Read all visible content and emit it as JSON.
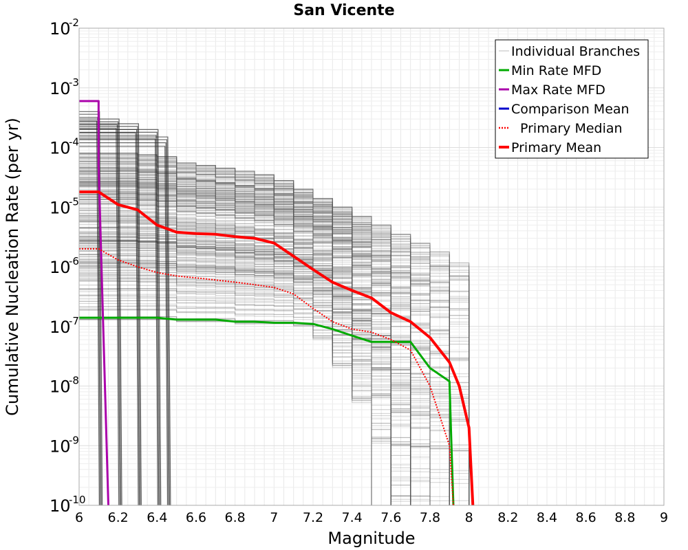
{
  "chart_data": {
    "type": "line",
    "title": "San Vicente",
    "xlabel": "Magnitude",
    "ylabel": "Cumulative Nucleation Rate (per yr)",
    "xlim": [
      6,
      9
    ],
    "ylim": [
      1e-10,
      0.01
    ],
    "yscale": "log",
    "grid": true,
    "legend_position": "top-right",
    "x_ticks": [
      "6",
      "6.2",
      "6.4",
      "6.6",
      "6.8",
      "7",
      "7.2",
      "7.4",
      "7.6",
      "7.8",
      "8",
      "8.2",
      "8.4",
      "8.6",
      "8.8",
      "9"
    ],
    "y_ticks": [
      {
        "base": "10",
        "exp": "-2",
        "value": 0.01
      },
      {
        "base": "10",
        "exp": "-3",
        "value": 0.001
      },
      {
        "base": "10",
        "exp": "-4",
        "value": 0.0001
      },
      {
        "base": "10",
        "exp": "-5",
        "value": 1e-05
      },
      {
        "base": "10",
        "exp": "-6",
        "value": 1e-06
      },
      {
        "base": "10",
        "exp": "-7",
        "value": 1e-07
      },
      {
        "base": "10",
        "exp": "-8",
        "value": 1e-08
      },
      {
        "base": "10",
        "exp": "-9",
        "value": 1e-09
      },
      {
        "base": "10",
        "exp": "-10",
        "value": 1e-10
      }
    ],
    "series": [
      {
        "name": "Individual Branches",
        "color": "#555555",
        "style": "thin",
        "x": [
          6.0,
          6.1,
          6.2,
          6.3,
          6.4,
          6.5,
          6.6,
          6.7,
          6.8,
          6.9,
          7.0,
          7.1,
          7.2,
          7.3,
          7.4,
          7.5,
          7.6,
          7.7,
          7.8,
          7.9,
          8.0
        ],
        "upper_envelope": [
          8e-05,
          8e-05,
          8e-05,
          7.5e-05,
          7e-05,
          5.5e-05,
          5e-05,
          4.5e-05,
          4e-05,
          3.5e-05,
          2.8e-05,
          2e-05,
          1.4e-05,
          1e-05,
          7e-06,
          5e-06,
          3.5e-06,
          2.5e-06,
          1.8e-06,
          1.2e-06,
          2e-07
        ],
        "lower_envelope": [
          1.3e-07,
          1.3e-07,
          1.3e-07,
          1.3e-07,
          1.3e-07,
          1.2e-07,
          1.2e-07,
          1.2e-07,
          1.1e-07,
          1.1e-07,
          1.1e-07,
          1e-07,
          6e-08,
          2e-08,
          5e-09,
          1e-09,
          1e-10,
          1e-10,
          1e-10,
          1e-10,
          1e-10
        ],
        "early_branches": [
          {
            "rate": 0.0004,
            "cutoff": 6.1
          },
          {
            "rate": 0.0003,
            "cutoff": 6.2
          },
          {
            "rate": 0.00025,
            "cutoff": 6.3
          },
          {
            "rate": 0.0002,
            "cutoff": 6.4
          },
          {
            "rate": 0.00015,
            "cutoff": 6.45
          }
        ]
      },
      {
        "name": "Min Rate MFD",
        "color": "#00aa00",
        "style": "solid",
        "x": [
          6.0,
          6.1,
          6.2,
          6.3,
          6.4,
          6.5,
          6.6,
          6.7,
          6.8,
          6.9,
          7.0,
          7.1,
          7.2,
          7.3,
          7.4,
          7.5,
          7.6,
          7.7,
          7.8,
          7.9,
          7.91,
          7.92
        ],
        "y": [
          1.4e-07,
          1.4e-07,
          1.4e-07,
          1.4e-07,
          1.4e-07,
          1.3e-07,
          1.3e-07,
          1.3e-07,
          1.2e-07,
          1.2e-07,
          1.15e-07,
          1.15e-07,
          1.1e-07,
          9e-08,
          7e-08,
          5.5e-08,
          5.5e-08,
          5.5e-08,
          2e-08,
          1.2e-08,
          1e-09,
          1e-10
        ]
      },
      {
        "name": "Max Rate MFD",
        "color": "#aa00aa",
        "style": "solid",
        "x": [
          6.0,
          6.1,
          6.1,
          6.15
        ],
        "y": [
          0.0006,
          0.0006,
          5e-05,
          1e-10
        ]
      },
      {
        "name": "Comparison Mean",
        "color": "#0000cc",
        "style": "solid",
        "x": [],
        "y": []
      },
      {
        "name": "Primary Median",
        "color": "#ff0000",
        "style": "dotted",
        "x": [
          6.0,
          6.1,
          6.2,
          6.3,
          6.4,
          6.5,
          6.6,
          6.7,
          6.8,
          6.9,
          7.0,
          7.1,
          7.2,
          7.3,
          7.4,
          7.5,
          7.6,
          7.7,
          7.8,
          7.9,
          7.92
        ],
        "y": [
          2e-06,
          2e-06,
          1.3e-06,
          1e-06,
          8e-07,
          7e-07,
          6.5e-07,
          6e-07,
          5.5e-07,
          5e-07,
          4.5e-07,
          3.5e-07,
          2e-07,
          1.2e-07,
          9e-08,
          8e-08,
          6e-08,
          4e-08,
          1e-08,
          1e-09,
          1e-10
        ]
      },
      {
        "name": "Primary Mean",
        "color": "#ff0000",
        "style": "thick",
        "x": [
          6.0,
          6.1,
          6.2,
          6.3,
          6.4,
          6.5,
          6.6,
          6.7,
          6.8,
          6.9,
          7.0,
          7.1,
          7.2,
          7.3,
          7.4,
          7.5,
          7.6,
          7.7,
          7.8,
          7.9,
          7.95,
          8.0,
          8.02
        ],
        "y": [
          1.8e-05,
          1.8e-05,
          1.1e-05,
          9e-06,
          5e-06,
          3.8e-06,
          3.6e-06,
          3.5e-06,
          3.2e-06,
          3e-06,
          2.5e-06,
          1.5e-06,
          9e-07,
          5.5e-07,
          4e-07,
          3e-07,
          1.7e-07,
          1.2e-07,
          6.5e-08,
          2.5e-08,
          1e-08,
          2e-09,
          1e-10
        ]
      }
    ]
  }
}
